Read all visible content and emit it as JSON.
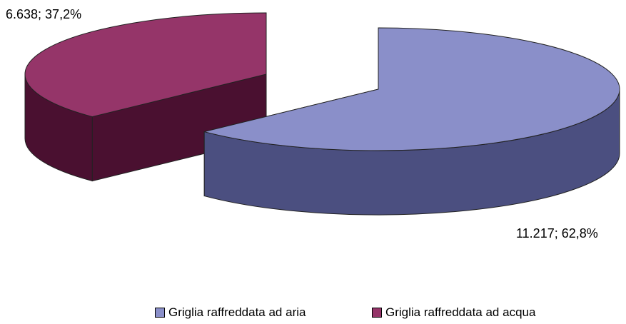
{
  "chart_data": {
    "type": "pie",
    "subtype": "exploded-3d",
    "title": "",
    "slices": [
      {
        "name": "Griglia raffreddata ad aria",
        "value": 11217,
        "percent": 62.8,
        "label": "11.217; 62,8%",
        "color": "#8a8fc9",
        "side_color": "#4b4f80"
      },
      {
        "name": "Griglia raffreddata ad acqua",
        "value": 6638,
        "percent": 37.2,
        "label": "6.638; 37,2%",
        "color": "#953569",
        "side_color": "#4a1030"
      }
    ],
    "legend_position": "bottom"
  }
}
